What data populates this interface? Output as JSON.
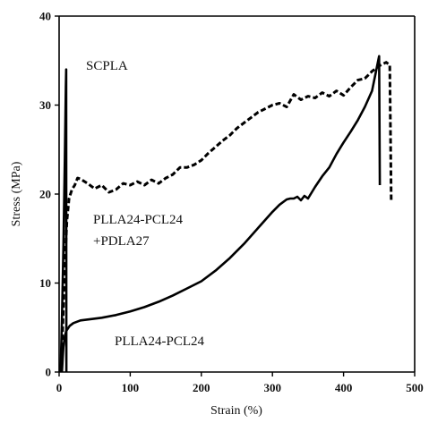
{
  "chart_data": {
    "type": "line",
    "title": "",
    "xlabel": "Strain (%)",
    "ylabel": "Stress (MPa)",
    "xlim": [
      0,
      500
    ],
    "ylim": [
      0,
      40
    ],
    "xticks": [
      0,
      100,
      200,
      300,
      400,
      500
    ],
    "yticks": [
      0,
      10,
      20,
      30,
      40
    ],
    "grid": false,
    "legend": "none",
    "annotations": [
      {
        "text": "SCPLA",
        "series": "SCPLA"
      },
      {
        "text": "PLLA24-PCL24",
        "series": "PLLA24-PCL24+PDLA27"
      },
      {
        "text": "+PDLA27",
        "series": "PLLA24-PCL24+PDLA27"
      },
      {
        "text": "PLLA24-PCL24",
        "series": "PLLA24-PCL24"
      }
    ],
    "series": [
      {
        "key": "SCPLA",
        "style": "solid",
        "color": "#000000",
        "x": [
          2,
          4,
          6,
          8,
          9.5,
          10,
          10.2
        ],
        "y": [
          0,
          6,
          14,
          24,
          32,
          34,
          0
        ]
      },
      {
        "key": "PLLA24-PCL24+PDLA27",
        "style": "dashed",
        "color": "#000000",
        "x": [
          3,
          5,
          8,
          11,
          14,
          18,
          22,
          26,
          30,
          40,
          50,
          60,
          70,
          80,
          90,
          100,
          110,
          120,
          130,
          140,
          150,
          160,
          170,
          180,
          190,
          200,
          210,
          220,
          230,
          240,
          250,
          260,
          270,
          280,
          290,
          300,
          310,
          320,
          330,
          340,
          350,
          360,
          370,
          380,
          390,
          400,
          410,
          420,
          430,
          440,
          450,
          460,
          465,
          467
        ],
        "y": [
          0,
          5,
          12,
          17,
          19.5,
          20.5,
          21,
          21.8,
          21.7,
          21.2,
          20.6,
          21.0,
          20.2,
          20.5,
          21.2,
          21.0,
          21.4,
          21.0,
          21.6,
          21.2,
          21.8,
          22.2,
          23.0,
          23.0,
          23.3,
          23.8,
          24.6,
          25.3,
          26.0,
          26.6,
          27.4,
          28.0,
          28.6,
          29.2,
          29.6,
          30.0,
          30.2,
          29.8,
          31.2,
          30.6,
          31.0,
          30.8,
          31.4,
          31.0,
          31.6,
          31.1,
          32.0,
          32.8,
          33.0,
          33.8,
          34.4,
          34.8,
          34.5,
          19.3
        ]
      },
      {
        "key": "PLLA24-PCL24",
        "style": "solid",
        "color": "#000000",
        "x": [
          4,
          5,
          6,
          8,
          10,
          15,
          20,
          30,
          40,
          60,
          80,
          100,
          120,
          140,
          160,
          180,
          200,
          220,
          240,
          260,
          280,
          300,
          310,
          320,
          325,
          330,
          335,
          340,
          345,
          350,
          360,
          370,
          380,
          390,
          400,
          410,
          420,
          430,
          440,
          450,
          451
        ],
        "y": [
          0,
          1.5,
          2.8,
          4.0,
          4.6,
          5.2,
          5.5,
          5.8,
          5.9,
          6.1,
          6.4,
          6.8,
          7.3,
          7.9,
          8.6,
          9.4,
          10.2,
          11.4,
          12.8,
          14.4,
          16.2,
          18.0,
          18.8,
          19.4,
          19.5,
          19.5,
          19.7,
          19.3,
          19.8,
          19.5,
          20.8,
          22.0,
          23.0,
          24.5,
          25.8,
          27.0,
          28.3,
          29.8,
          31.6,
          35.5,
          21.0
        ]
      }
    ]
  }
}
